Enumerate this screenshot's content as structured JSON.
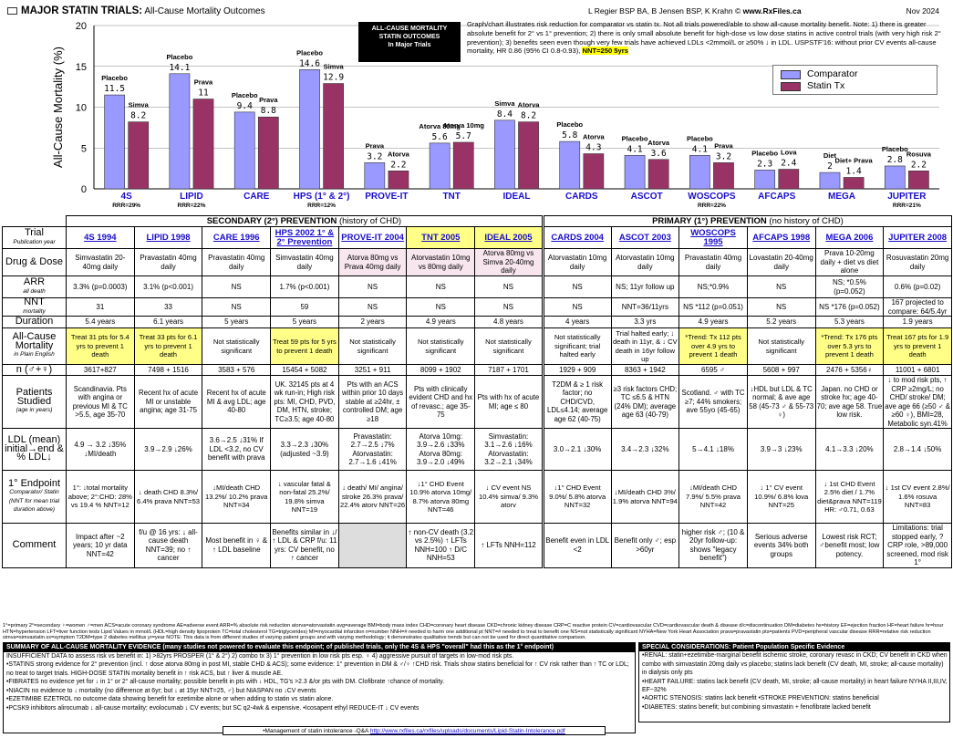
{
  "header": {
    "title_bold": "MAJOR STATIN TRIALS:",
    "title_rest": " All-Cause Mortality Outcomes",
    "authors": "L Regier BSP BA, B Jensen BSP, K Krahn ©",
    "site": "www.RxFiles.ca",
    "date": "Nov 2024"
  },
  "blackbox": {
    "l1": "ALL-CAUSE MORTALITY",
    "l2": "STATIN OUTCOMES",
    "l3": "In Major Trials"
  },
  "note": {
    "text": "Graph/chart illustrates risk reduction for comparator vs statin tx. Not all trials powered/able to show all-cause mortality benefit. Note: 1) there is greater absolute benefit for 2° vs 1° prevention; 2) there is only small absolute benefit for high-dose vs low dose statins in active control trials (with very high risk 2° prevention); 3) benefits seen even though very few trials have achieved LDLs <2mmol/L or ≥50% ↓ in LDL. USPSTF'16: without prior CV events all-cause mortality, HR 0.86 (95% CI 0.8-0.93), ",
    "highlight": "NNT=250 5yrs"
  },
  "legend": {
    "comparator": "Comparator",
    "statin": "Statin Tx"
  },
  "colors": {
    "comparator": "#9999ff",
    "statin": "#993366",
    "link": "#1a0dcc"
  },
  "chart_data": {
    "type": "bar",
    "ylabel": "All-Cause Mortality (%)",
    "ylim": [
      0,
      20
    ],
    "yticks": [
      0,
      5,
      10,
      15,
      20
    ],
    "categories": [
      "4S",
      "LIPID",
      "CARE",
      "HPS (1° & 2°)",
      "PROVE-IT",
      "TNT",
      "IDEAL",
      "CARDS",
      "ASCOT",
      "WOSCOPS",
      "AFCAPS",
      "MEGA",
      "JUPITER"
    ],
    "rrr": [
      "RRR=29%",
      "RRR=22%",
      "",
      "RRR=12%",
      "",
      "",
      "",
      "",
      "",
      "RRR=22%",
      "",
      "",
      "RRR=21%"
    ],
    "series": [
      {
        "name": "Comparator",
        "values": [
          11.5,
          14.1,
          9.4,
          14.6,
          3.2,
          5.6,
          8.4,
          5.8,
          4.1,
          4.1,
          2.3,
          2.0,
          2.8
        ]
      },
      {
        "name": "Statin Tx",
        "values": [
          8.2,
          11.0,
          8.8,
          12.9,
          2.2,
          5.7,
          8.2,
          4.3,
          3.6,
          3.2,
          2.4,
          1.4,
          2.2
        ]
      }
    ],
    "labels_cmp": [
      "Placebo",
      "Placebo",
      "Placebo",
      "Placebo",
      "Prava",
      "Atorva 80mg",
      "Simva",
      "Placebo",
      "Placebo",
      "Placebo",
      "Placebo",
      "Diet",
      "Placebo"
    ],
    "labels_st": [
      "Simva",
      "Prava",
      "Prava",
      "Simva",
      "Atorva",
      "Atorva 10mg",
      "Atorva",
      "Atorva",
      "Atorva",
      "Prava",
      "Lova",
      "Diet+ Prava",
      "Rosuva"
    ]
  },
  "table": {
    "sec_title": "SECONDARY (2°) PREVENTION",
    "sec_sub": " (history of CHD)",
    "pri_title": "PRIMARY (1°) PREVENTION",
    "pri_sub": " (no history of CHD)",
    "rows": [
      {
        "head": "Trial",
        "sub": "Publication year",
        "cells": [
          "4S 1994",
          "LIPID 1998",
          "CARE 1996",
          "HPS 2002 1° & 2° Prevention",
          "PROVE-IT 2004",
          "TNT 2005",
          "IDEAL 2005",
          "CARDS 2004",
          "ASCOT 2003",
          "WOSCOPS 1995",
          "AFCAPS 1998",
          "MEGA 2006",
          "JUPITER 2008"
        ]
      },
      {
        "head": "Drug & Dose",
        "sub": "",
        "cells": [
          "Simvastatin 20-40mg daily",
          "Pravastatin 40mg daily",
          "Pravastatin 40mg daily",
          "Simvastatin 40mg daily",
          "Atorva 80mg vs Prava 40mg daily",
          "Atorvastatin 10mg vs 80mg daily",
          "Atorva 80mg vs Simva 20-40mg daily",
          "Atorvastatin 10mg daily",
          "Atorvastatin 10mg daily",
          "Pravastatin 40mg daily",
          "Lovastatin 20-40mg daily",
          "Prava 10-20mg daily + diet vs diet alone",
          "Rosuvastatin 20mg daily"
        ]
      },
      {
        "head": "ARR",
        "sub": "all death",
        "cells": [
          "3.3% (p=0.0003)",
          "3.1% (p<0.001)",
          "NS",
          "1.7% (p<0.001)",
          "NS",
          "NS",
          "NS",
          "NS",
          "NS; 11yr follow up",
          "NS;*0.9%",
          "NS",
          "NS; *0.5% (p=0.052)",
          "0.6% (p=0.02)"
        ]
      },
      {
        "head": "NNT",
        "sub": "mortality",
        "cells": [
          "31",
          "33",
          "NS",
          "59",
          "NS",
          "NS",
          "NS",
          "NS",
          "NNT=36/11yrs",
          "NS *112 (p=0.051)",
          "NS",
          "NS *176 (p=0.052)",
          "167 projected to compare: 64/5.4yr"
        ]
      },
      {
        "head": "Duration",
        "sub": "",
        "cells": [
          "5.4 years",
          "6.1 years",
          "5 years",
          "5 years",
          "2 years",
          "4.9 years",
          "4.8 years",
          "4 years",
          "3.3 yrs",
          "4.9 years",
          "5.2 years",
          "5.3 years",
          "1.9 years"
        ]
      },
      {
        "head": "All-Cause Mortality",
        "sub": "in Plain English",
        "cells": [
          "Treat 31 pts for 5.4 yrs to prevent 1 death",
          "Treat 33 pts for 6.1 yrs to prevent 1 death",
          "Not statistically significant",
          "Treat 59 pts for 5 yrs to prevent 1 death",
          "Not statistically significant",
          "Not statistically significant",
          "Not statistically significant",
          "Not statistically significant; trial halted early",
          "Trial halted early; ↓ death in 11yr, & ↓ CV death in 16yr follow up",
          "*Trend: Tx 112 pts over 4.9 yrs to prevent 1 death",
          "Not statistically significant",
          "*Trend: Tx 176 pts over 5.3 yrs to prevent 1 death",
          "Treat 167 pts for 1.9 yrs to prevent 1 death"
        ]
      },
      {
        "head": "n (♂+♀)",
        "sub": "",
        "cells": [
          "3617+827",
          "7498 + 1516",
          "3583 + 576",
          "15454 + 5082",
          "3251 + 911",
          "8099 + 1902",
          "7187 + 1701",
          "1929 + 909",
          "8363 + 1942",
          "6595 ♂",
          "5608 + 997",
          "2476 + 5356♀",
          "11001 + 6801"
        ]
      },
      {
        "head": "Patients Studied",
        "sub": "(age in years)",
        "cells": [
          "Scandinavia. Pts with angina or previous MI & TC >5.5, age 35-70",
          "Recent hx of acute MI or unstable angina; age 31-75",
          "Recent hx of acute MI & avg LDL; age 40-80",
          "UK. 32145 pts at 4 wk run-in; High risk pts: MI, CHD, PVD, DM, HTN, stroke; TC≥3.5; age 40-80",
          "Pts with an ACS within prior 10 days stable at ≥24hr, ± controlled DM; age ≥18",
          "Pts with clinically evident CHD and hx of revasc.; age 35-75",
          "Pts with hx of acute MI; age ≤ 80",
          "T2DM & ≥ 1 risk factor; no CHD/CVD, LDL≤4.14; average age 62 (40-75)",
          "≥3 risk factors CHD; TC ≤6.5 & HTN (24% DM); average age 63 (40-79)",
          "Scotland. ♂ with TC ≥7; 44% smokers; ave 55yo (45-65)",
          "↓HDL but LDL & TC normal; & ave age 58 (45-73 ♂ & 55-73 ♀)",
          "Japan. no CHD or stroke hx; age 40-70; ave age 58. True low risk.",
          "↓ to mod risk pts, ↑ CRP ≥2mg/L; no CHD/ stroke/ DM; ave age 66 (≥50 ♂ & ≥60 ♀), BMI=28, Metabolic syn.41%"
        ]
      },
      {
        "head": "LDL (mean) initial→end & % LDL↓",
        "sub": "",
        "cells": [
          "4.9 → 3.2 ↓35% ↓MI/death",
          "3.9→2.9 ↓26%",
          "3.6→2.5 ↓31% If LDL <3.2, no CV benefit with prava",
          "3.3→2.3 ↓30% (adjusted ~3.9)",
          "Pravastatin: 2.7→2.5 ↓7% Atorvastatin: 2.7→1.6 ↓41%",
          "Atorva 10mg: 3.9→2.6 ↓33% Atorva 80mg: 3.9→2.0 ↓49%",
          "Simvastatin: 3.1→2.6 ↓16% Atorvastatin: 3.2→2.1 ↓34%",
          "3.0→2.1 ↓30%",
          "3.4→2.3 ↓32%",
          "5→4.1 ↓18%",
          "3.9→3 ↓23%",
          "4.1→3.3 ↓20%",
          "2.8→1.4 ↓50%"
        ]
      },
      {
        "head": "1° Endpoint",
        "sub": "Comparator/ Statin (NNT for mean trial duration above)",
        "cells": [
          "1°: ↓total mortality above; 2°:CHD: 28% vs 19.4 % NNT=12",
          "↓ death CHD 8.3%/ 6.4% prava NNT=53",
          "↓MI/death CHD 13.2%/ 10.2% prava NNT=34",
          "↓ vascular fatal & non-fatal 25.2%/ 19.8% simva NNT=19",
          "↓ death/ MI/ angina/ stroke 26.3% prava/ 22.4% atorv NNT=26",
          "↓1° CHD Event 10.9% atorva 10mg/ 8.7% atorva 80mg NNT=46",
          "↓ CV event NS 10.4% simva/ 9.3% atorv",
          "↓1° CHD Event 9.0%/ 5.8% atorva NNT=32",
          "↓MI/death CHD 3%/ 1.9% atorva NNT=94",
          "↓MI/death CHD 7.9%/ 5.5% prava NNT=42",
          "↓ 1° CV event 10.9%/ 6.8% lova NNT=25",
          "↓ 1st CHD Event 2.5% diet / 1.7% diet&prava NNT=119 HR: ♂0.71, 0.63",
          "↓ 1st CV event 2.8%/ 1.6% rosuva NNT=83"
        ]
      },
      {
        "head": "Comment",
        "sub": "",
        "cells": [
          "Impact after ~2 years; 10 yr data NNT=42",
          "f/u @ 16 yrs: ↓ all-cause death NNT=39; no ↑ cancer",
          "Most benefit in ♀ & ↑ LDL baseline",
          "Benefits similar in ↓/ ↑ LDL & CRP f/u: 11 yrs: CV benefit, no ↑ cancer",
          "",
          "↑ non-CV death (3.2 vs 2.5%) ↑ LFTs NNH=100 ↑ D/C NNH=53",
          "↑ LFTs NNH=112",
          "Benefit even in LDL <2",
          "Benefit only ♂; esp >60yr",
          "higher risk ♂; (10 & 20yr follow-up: shows \"legacy benefit\")",
          "Serious adverse events 34% both groups",
          "Lowest risk RCT; ♂benefit most; low potency.",
          "Limitations: trial stopped early, ?CRP role, >89,000 screened, mod risk 1°"
        ]
      }
    ]
  },
  "footnote": "1°=primary 2°=secondary ♀=women ♂=men ACS=acute coronary syndrome AE=adverse event ARR=% absolute risk reduction atorva=atorvastatin avg=average BMI=body mass index CHD=coronary heart disease CKD=chronic kidney disease CRP=C reactive protein CV=cardiovascular CVD=cardiovascular death & disease d/c=discontinuation DM=diabetes hx=history EF=ejection fraction HF=heart failure hr=hour HTN=hypertension LFT=liver function tests Lipid Values in mmol/L (HDL=high density lipoprotein TC=total cholesterol TG=triglycerides) MI=myocardial infarction n=number NNH=# needed to harm one additional pt NNT=# needed to treat to benefit one NS=not statistically significant NYHA=New York Heart Association prava=pravastatin pts=patients PVD=peripheral vascular disease RRR=relative risk reduction simva=simvastatin sx=symptom T2DM=type 2 diabetes mellitus yr=year NOTE: This data is from different studies of varying patient groups and with varying methodology; it demonstrates qualitative trends but can not be used for direct quantitative comparison.",
  "summary": {
    "title": "SUMMARY OF ALL-CAUSE MORTALITY EVIDENCE (many studies not powered to evaluate this endpoint; of published trials, only the 4S & HPS \"overall\" had this as the 1° endpoint)",
    "lines": [
      "INSUFFICIENT DATA to assess risk vs benefit in: 1) >82yrs PROSPER (1° & 2°) 2) combo tx 3) 1° prevention in low risk pts esp. ♀ 4) aggressive pursuit of targets in low-mod risk pts.",
      "•STATINS strong evidence for 2° prevention (incl. ↑ dose atorva 80mg in post MI, stable CHD & ACS); some evidence: 1° prevention in DM & ♂/♀ ↑CHD risk. Trials show statins beneficial for ↑ CV risk rather than ↑ TC or LDL; no treat to target trials. HIGH-DOSE STATIN mortality benefit in ↑ risk ACS, but ↑ liver & muscle AE.",
      "•FIBRATES no evidence yet for ↓ in 1° or 2° all-cause mortality; possible benefit in pts with ↓ HDL, TG's >2.3 &/or pts with DM. Clofibrate ↑chance of mortality.",
      "•NIACIN no evidence to ↓ mortality (no difference at 6yr; but ↓ at 15yr NNT=25, ♂) but NIASPAN no ↓CV events",
      "•EZETIMIBE EZETROL no outcome data showing benefit for ezetimibe alone or when adding to statin vs statin alone.",
      "•PCSK9 inhibitors alirocumab ↓ all-cause mortality; evolocumab ↓ CV events; but SC q2-4wk & expensive. •Icosapent ethyl REDUCE-IT ↓ CV events"
    ]
  },
  "special": {
    "title": "SPECIAL CONSIDERATIONS: Patient Population Specific Evidence",
    "lines": [
      "•RENAL: statin+ezetimibe-marginal benefit ischemic stroke, coronary revasc in CKD; CV benefit in CKD when combo with simvastatin 20mg daily vs placebo; statins lack benefit (CV death, MI, stroke; all-cause mortality) in dialysis only pts",
      "•HEART FAILURE: statins lack benefit (CV death, MI, stroke; all-cause mortality) in heart failure NYHA II,III,IV, EF~32%",
      "•AORTIC STENOSIS: statins lack benefit •STROKE PREVENTION: statins beneficial",
      "•DIABETES: statins benefit; but combining simvastatin + fenofibrate lacked benefit"
    ]
  },
  "link": {
    "prefix": "•Management of statin intolerance -Q&A ",
    "url": "http://www.rxfiles.ca/rxfiles/uploads/documents/Lipid-Statin-Intolerance.pdf"
  }
}
